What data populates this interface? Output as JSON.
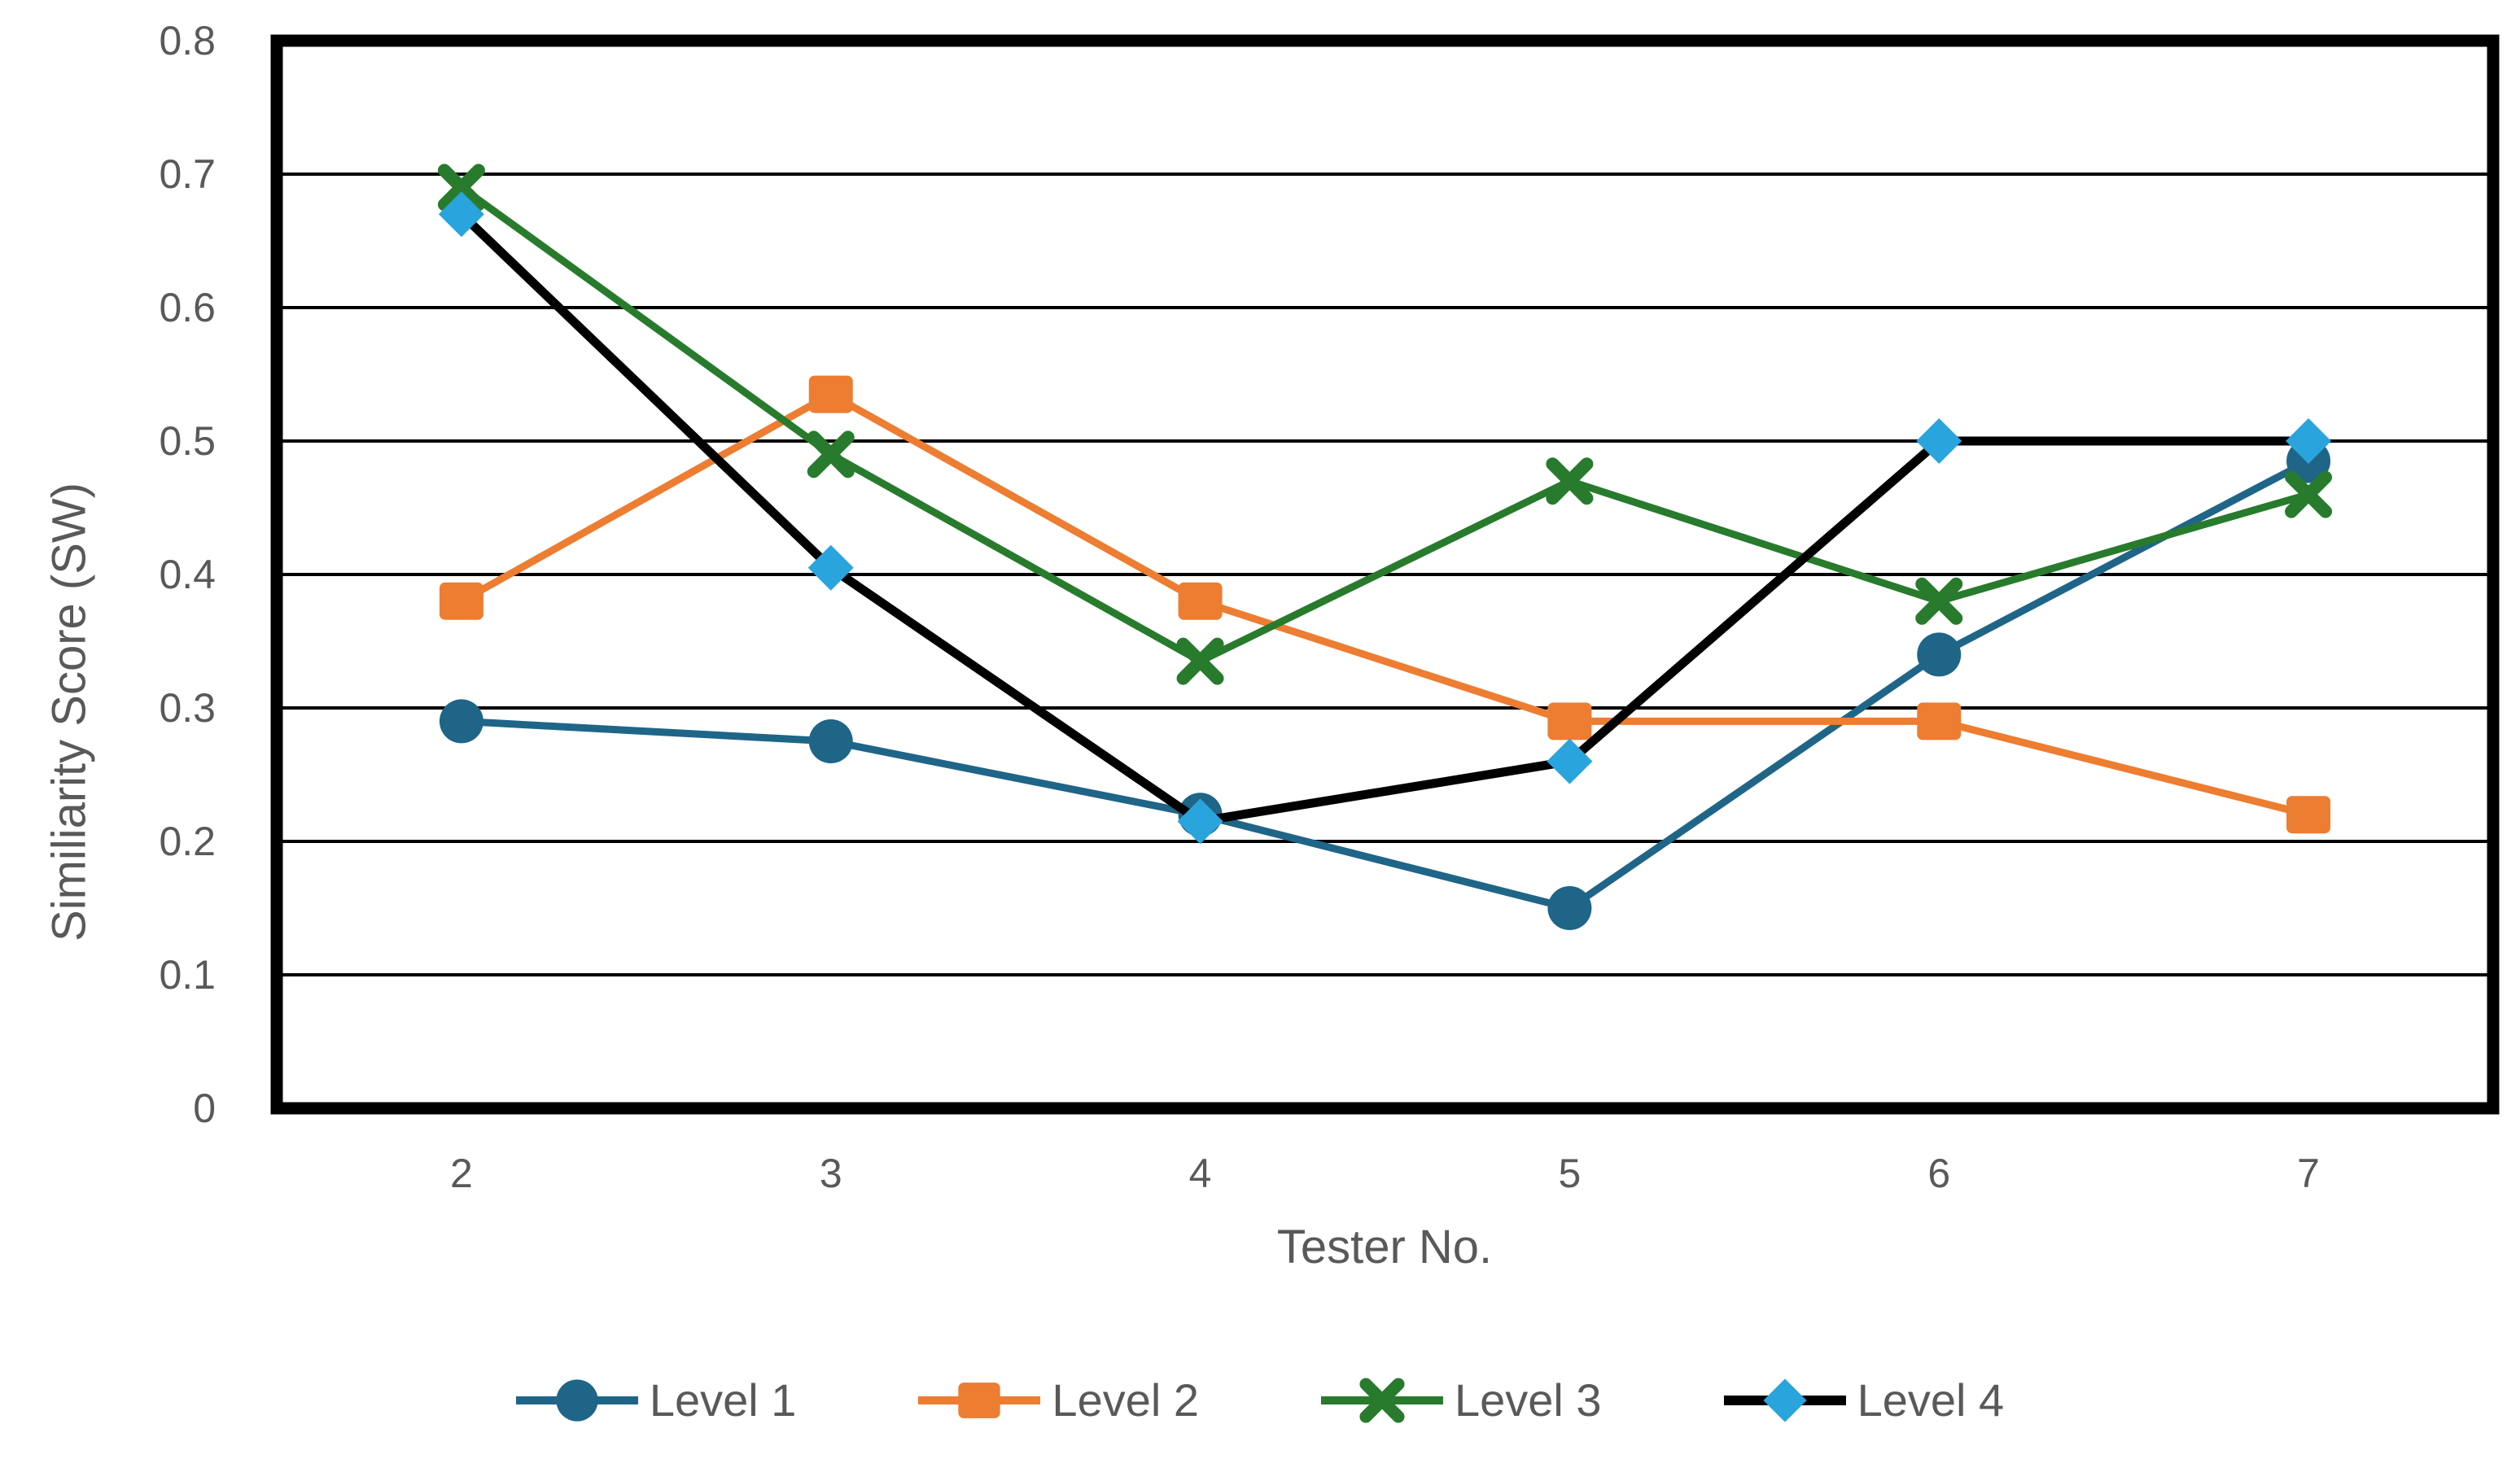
{
  "chart_data": {
    "type": "line",
    "title": "",
    "xlabel": "Tester No.",
    "ylabel": "Similiarity Score (SW)",
    "categories": [
      "2",
      "3",
      "4",
      "5",
      "6",
      "7"
    ],
    "ylim": [
      0,
      0.8
    ],
    "yticks": [
      0,
      0.1,
      0.2,
      0.3,
      0.4,
      0.5,
      0.6,
      0.7,
      0.8
    ],
    "ytick_labels": [
      "0",
      "0.1",
      "0.2",
      "0.3",
      "0.4",
      "0.5",
      "0.6",
      "0.7",
      "0.8"
    ],
    "grid": "horizontal-black",
    "legend_position": "bottom",
    "frame_color": "#000000",
    "text_color": "#595959",
    "series": [
      {
        "name": "Level 1",
        "marker": "circle",
        "color": "#1F6588",
        "line_color": "#1F6588",
        "line_width": 9,
        "values": [
          0.29,
          0.275,
          0.22,
          0.15,
          0.34,
          0.485
        ]
      },
      {
        "name": "Level 2",
        "marker": "square",
        "color": "#ED7D31",
        "line_color": "#ED7D31",
        "line_width": 9,
        "values": [
          0.38,
          0.535,
          0.38,
          0.29,
          0.29,
          0.22
        ]
      },
      {
        "name": "Level 3",
        "marker": "x",
        "color": "#287B2D",
        "line_color": "#287B2D",
        "line_width": 9,
        "values": [
          0.69,
          0.49,
          0.335,
          0.47,
          0.38,
          0.46
        ]
      },
      {
        "name": "Level 4",
        "marker": "diamond",
        "color": "#29A4DC",
        "line_color": "#000000",
        "line_width": 11,
        "values": [
          0.67,
          0.405,
          0.215,
          0.26,
          0.5,
          0.5
        ]
      }
    ]
  }
}
